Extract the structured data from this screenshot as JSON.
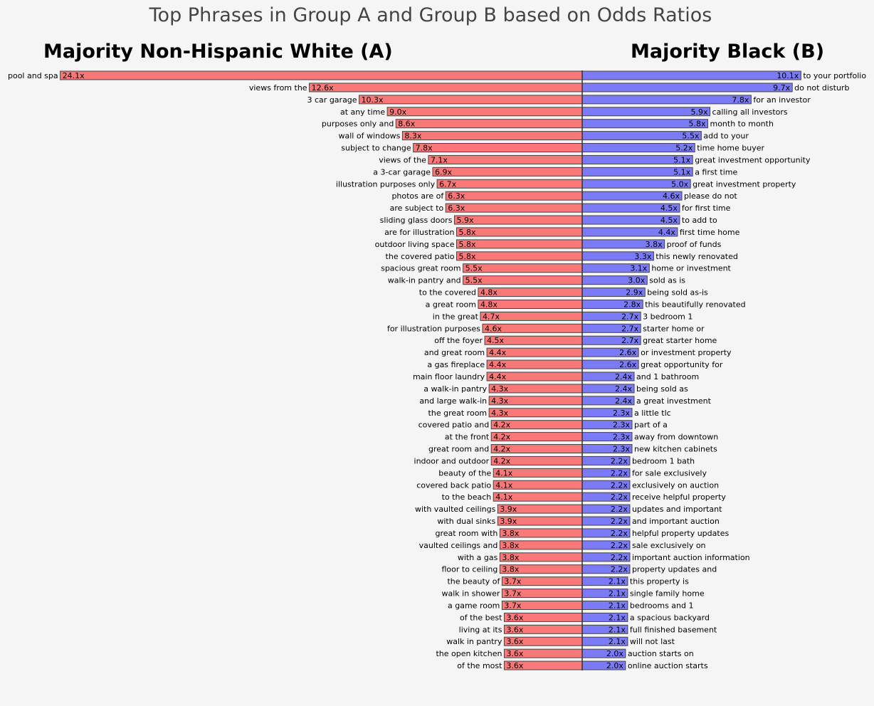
{
  "chart_data": {
    "type": "bar",
    "title": "Top Phrases in Group A and Group B based on Odds Ratios",
    "colors": {
      "group_a": "#fa7878",
      "group_b": "#7b7bf8",
      "edge": "#444444",
      "background": "#f5f5f5"
    },
    "value_suffix": "x",
    "series": [
      {
        "name": "Majority Non-Hispanic White (A)",
        "side": "left",
        "categories": [
          "pool and spa",
          "views from the",
          "3 car garage",
          "at any time",
          "purposes only and",
          "wall of windows",
          "subject to change",
          "views of the",
          "a 3-car garage",
          "illustration purposes only",
          "photos are of",
          "are subject to",
          "sliding glass doors",
          "are for illustration",
          "outdoor living space",
          "the covered patio",
          "spacious great room",
          "walk-in pantry and",
          "to the covered",
          "a great room",
          "in the great",
          "for illustration purposes",
          "off the foyer",
          "and great room",
          "a gas fireplace",
          "main floor laundry",
          "a walk-in pantry",
          "and large walk-in",
          "the great room",
          "covered patio and",
          "at the front",
          "great room and",
          "indoor and outdoor",
          "beauty of the",
          "covered back patio",
          "to the beach",
          "with vaulted ceilings",
          "with dual sinks",
          "great room with",
          "vaulted ceilings and",
          "with a gas",
          "floor to ceiling",
          "the beauty of",
          "walk in shower",
          "a game room",
          "of the best",
          "living at its",
          "walk in pantry",
          "the open kitchen",
          "of the most"
        ],
        "values": [
          24.1,
          12.6,
          10.3,
          9.0,
          8.6,
          8.3,
          7.8,
          7.1,
          6.9,
          6.7,
          6.3,
          6.3,
          5.9,
          5.8,
          5.8,
          5.8,
          5.5,
          5.5,
          4.8,
          4.8,
          4.7,
          4.6,
          4.5,
          4.4,
          4.4,
          4.4,
          4.3,
          4.3,
          4.3,
          4.2,
          4.2,
          4.2,
          4.2,
          4.1,
          4.1,
          4.1,
          3.9,
          3.9,
          3.8,
          3.8,
          3.8,
          3.8,
          3.7,
          3.7,
          3.7,
          3.6,
          3.6,
          3.6,
          3.6,
          3.6
        ]
      },
      {
        "name": "Majority Black (B)",
        "side": "right",
        "categories": [
          "to your portfolio",
          "do not disturb",
          "for an investor",
          "calling all investors",
          "month to month",
          "add to your",
          "time home buyer",
          "great investment opportunity",
          "a first time",
          "great investment property",
          "please do not",
          "for first time",
          "to add to",
          "first time home",
          "proof of funds",
          "this newly renovated",
          "home or investment",
          "sold as is",
          "being sold as-is",
          "this beautifully renovated",
          "3 bedroom 1",
          "starter home or",
          "great starter home",
          "or investment property",
          "great opportunity for",
          "and 1 bathroom",
          "being sold as",
          "a great investment",
          "a little tlc",
          "part of a",
          "away from downtown",
          "new kitchen cabinets",
          "bedroom 1 bath",
          "for sale exclusively",
          "exclusively on auction",
          "receive helpful property",
          "updates and important",
          "and important auction",
          "helpful property updates",
          "sale exclusively on",
          "important auction information",
          "property updates and",
          "this property is",
          "single family home",
          "bedrooms and 1",
          "a spacious backyard",
          "full finished basement",
          "will not last",
          "auction starts on",
          "online auction starts"
        ],
        "values": [
          10.1,
          9.7,
          7.8,
          5.9,
          5.8,
          5.5,
          5.2,
          5.1,
          5.1,
          5.0,
          4.6,
          4.5,
          4.5,
          4.4,
          3.8,
          3.3,
          3.1,
          3.0,
          2.9,
          2.8,
          2.7,
          2.7,
          2.7,
          2.6,
          2.6,
          2.4,
          2.4,
          2.4,
          2.3,
          2.3,
          2.3,
          2.3,
          2.2,
          2.2,
          2.2,
          2.2,
          2.2,
          2.2,
          2.2,
          2.2,
          2.2,
          2.2,
          2.1,
          2.1,
          2.1,
          2.1,
          2.1,
          2.1,
          2.0,
          2.0
        ]
      }
    ]
  }
}
